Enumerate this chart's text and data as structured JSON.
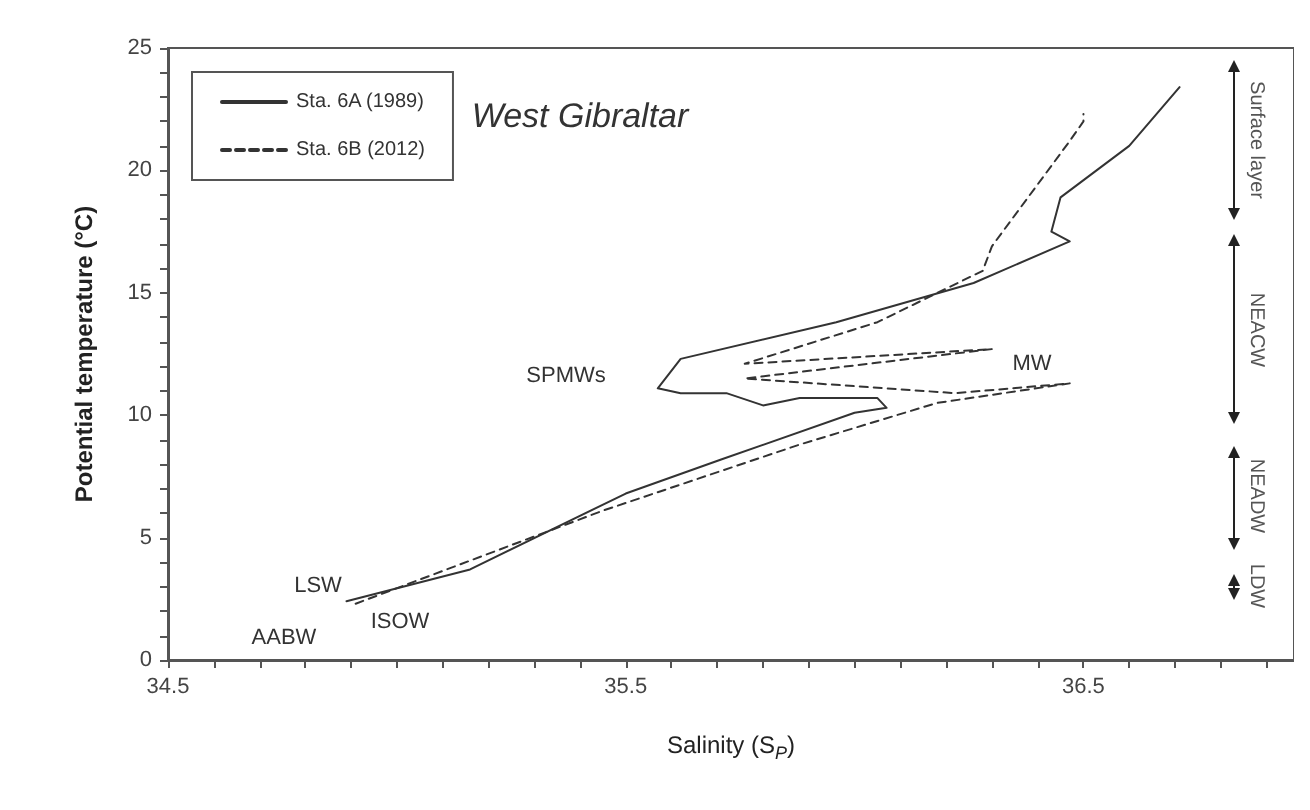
{
  "chart_data": {
    "type": "line",
    "xlabel": "Salinity (S$_{P}$)",
    "ylabel": "Potential temperature (°C)",
    "xlim": [
      34.5,
      36.96
    ],
    "xticks": [
      34.5,
      {
        "value": 34.6,
        "label": null
      },
      {
        "value": 34.7,
        "label": null
      },
      {
        "value": 34.8,
        "label": null
      },
      {
        "value": 34.9,
        "label": null
      },
      {
        "value": 35.0,
        "label": null
      },
      {
        "value": 35.1,
        "label": null
      },
      {
        "value": 35.2,
        "label": null
      },
      {
        "value": 35.3,
        "label": null
      },
      {
        "value": 35.4,
        "label": null
      },
      35.5,
      {
        "value": 35.6,
        "label": null
      },
      {
        "value": 35.7,
        "label": null
      },
      {
        "value": 35.8,
        "label": null
      },
      {
        "value": 35.9,
        "label": null
      },
      {
        "value": 36.0,
        "label": null
      },
      {
        "value": 36.1,
        "label": null
      },
      {
        "value": 36.2,
        "label": null
      },
      {
        "value": 36.3,
        "label": null
      },
      {
        "value": 36.4,
        "label": null
      },
      36.5,
      {
        "value": 36.6,
        "label": null
      },
      {
        "value": 36.7,
        "label": null
      },
      {
        "value": 36.8,
        "label": null
      },
      {
        "value": 36.9,
        "label": null
      }
    ],
    "ylim": [
      0,
      25
    ],
    "yticks": [
      0,
      {
        "value": 1,
        "label": null
      },
      {
        "value": 2,
        "label": null
      },
      {
        "value": 3,
        "label": null
      },
      {
        "value": 4,
        "label": null
      },
      5,
      {
        "value": 6,
        "label": null
      },
      {
        "value": 7,
        "label": null
      },
      {
        "value": 8,
        "label": null
      },
      {
        "value": 9,
        "label": null
      },
      10,
      {
        "value": 11,
        "label": null
      },
      {
        "value": 12,
        "label": null
      },
      {
        "value": 13,
        "label": null
      },
      {
        "value": 14,
        "label": null
      },
      15,
      {
        "value": 16,
        "label": null
      },
      {
        "value": 17,
        "label": null
      },
      {
        "value": 18,
        "label": null
      },
      {
        "value": 19,
        "label": null
      },
      20,
      {
        "value": 21,
        "label": null
      },
      {
        "value": 22,
        "label": null
      },
      {
        "value": 23,
        "label": null
      },
      {
        "value": 24,
        "label": null
      },
      25
    ],
    "grid": false,
    "legend": "top left",
    "marker": "none",
    "series": [
      {
        "name": "Sta. 6A (1989)",
        "color": "#333333",
        "line_style": "solid",
        "x": [
          34.89,
          35.16,
          35.5,
          35.71,
          36.0,
          36.07,
          36.05,
          35.88,
          35.8,
          35.72,
          35.62,
          35.57,
          35.62,
          35.96,
          36.26,
          36.47,
          36.43,
          36.45,
          36.6,
          36.71
        ],
        "values": [
          2.4,
          3.7,
          6.8,
          8.2,
          10.1,
          10.3,
          10.7,
          10.7,
          10.4,
          10.9,
          10.9,
          11.1,
          12.3,
          13.8,
          15.4,
          17.1,
          17.5,
          18.9,
          21.0,
          23.4
        ]
      },
      {
        "name": "Sta. 6B (2012)",
        "color": "#333333",
        "line_style": "dashed",
        "x": [
          34.91,
          35.45,
          35.88,
          36.18,
          36.47,
          36.22,
          35.76,
          36.3,
          35.76,
          36.05,
          36.28,
          36.3,
          36.47,
          36.5,
          36.5
        ],
        "values": [
          2.3,
          6.1,
          8.8,
          10.5,
          11.3,
          10.9,
          11.5,
          12.7,
          12.1,
          13.8,
          15.9,
          16.9,
          21.2,
          22.0,
          22.3
        ]
      }
    ],
    "annotations": [
      "West Gibraltar",
      "SPMWs",
      "MW",
      "LSW",
      "AABW",
      "ISOW",
      "Surface layer",
      "NEACW",
      "NEADW",
      "LDW"
    ]
  }
}
